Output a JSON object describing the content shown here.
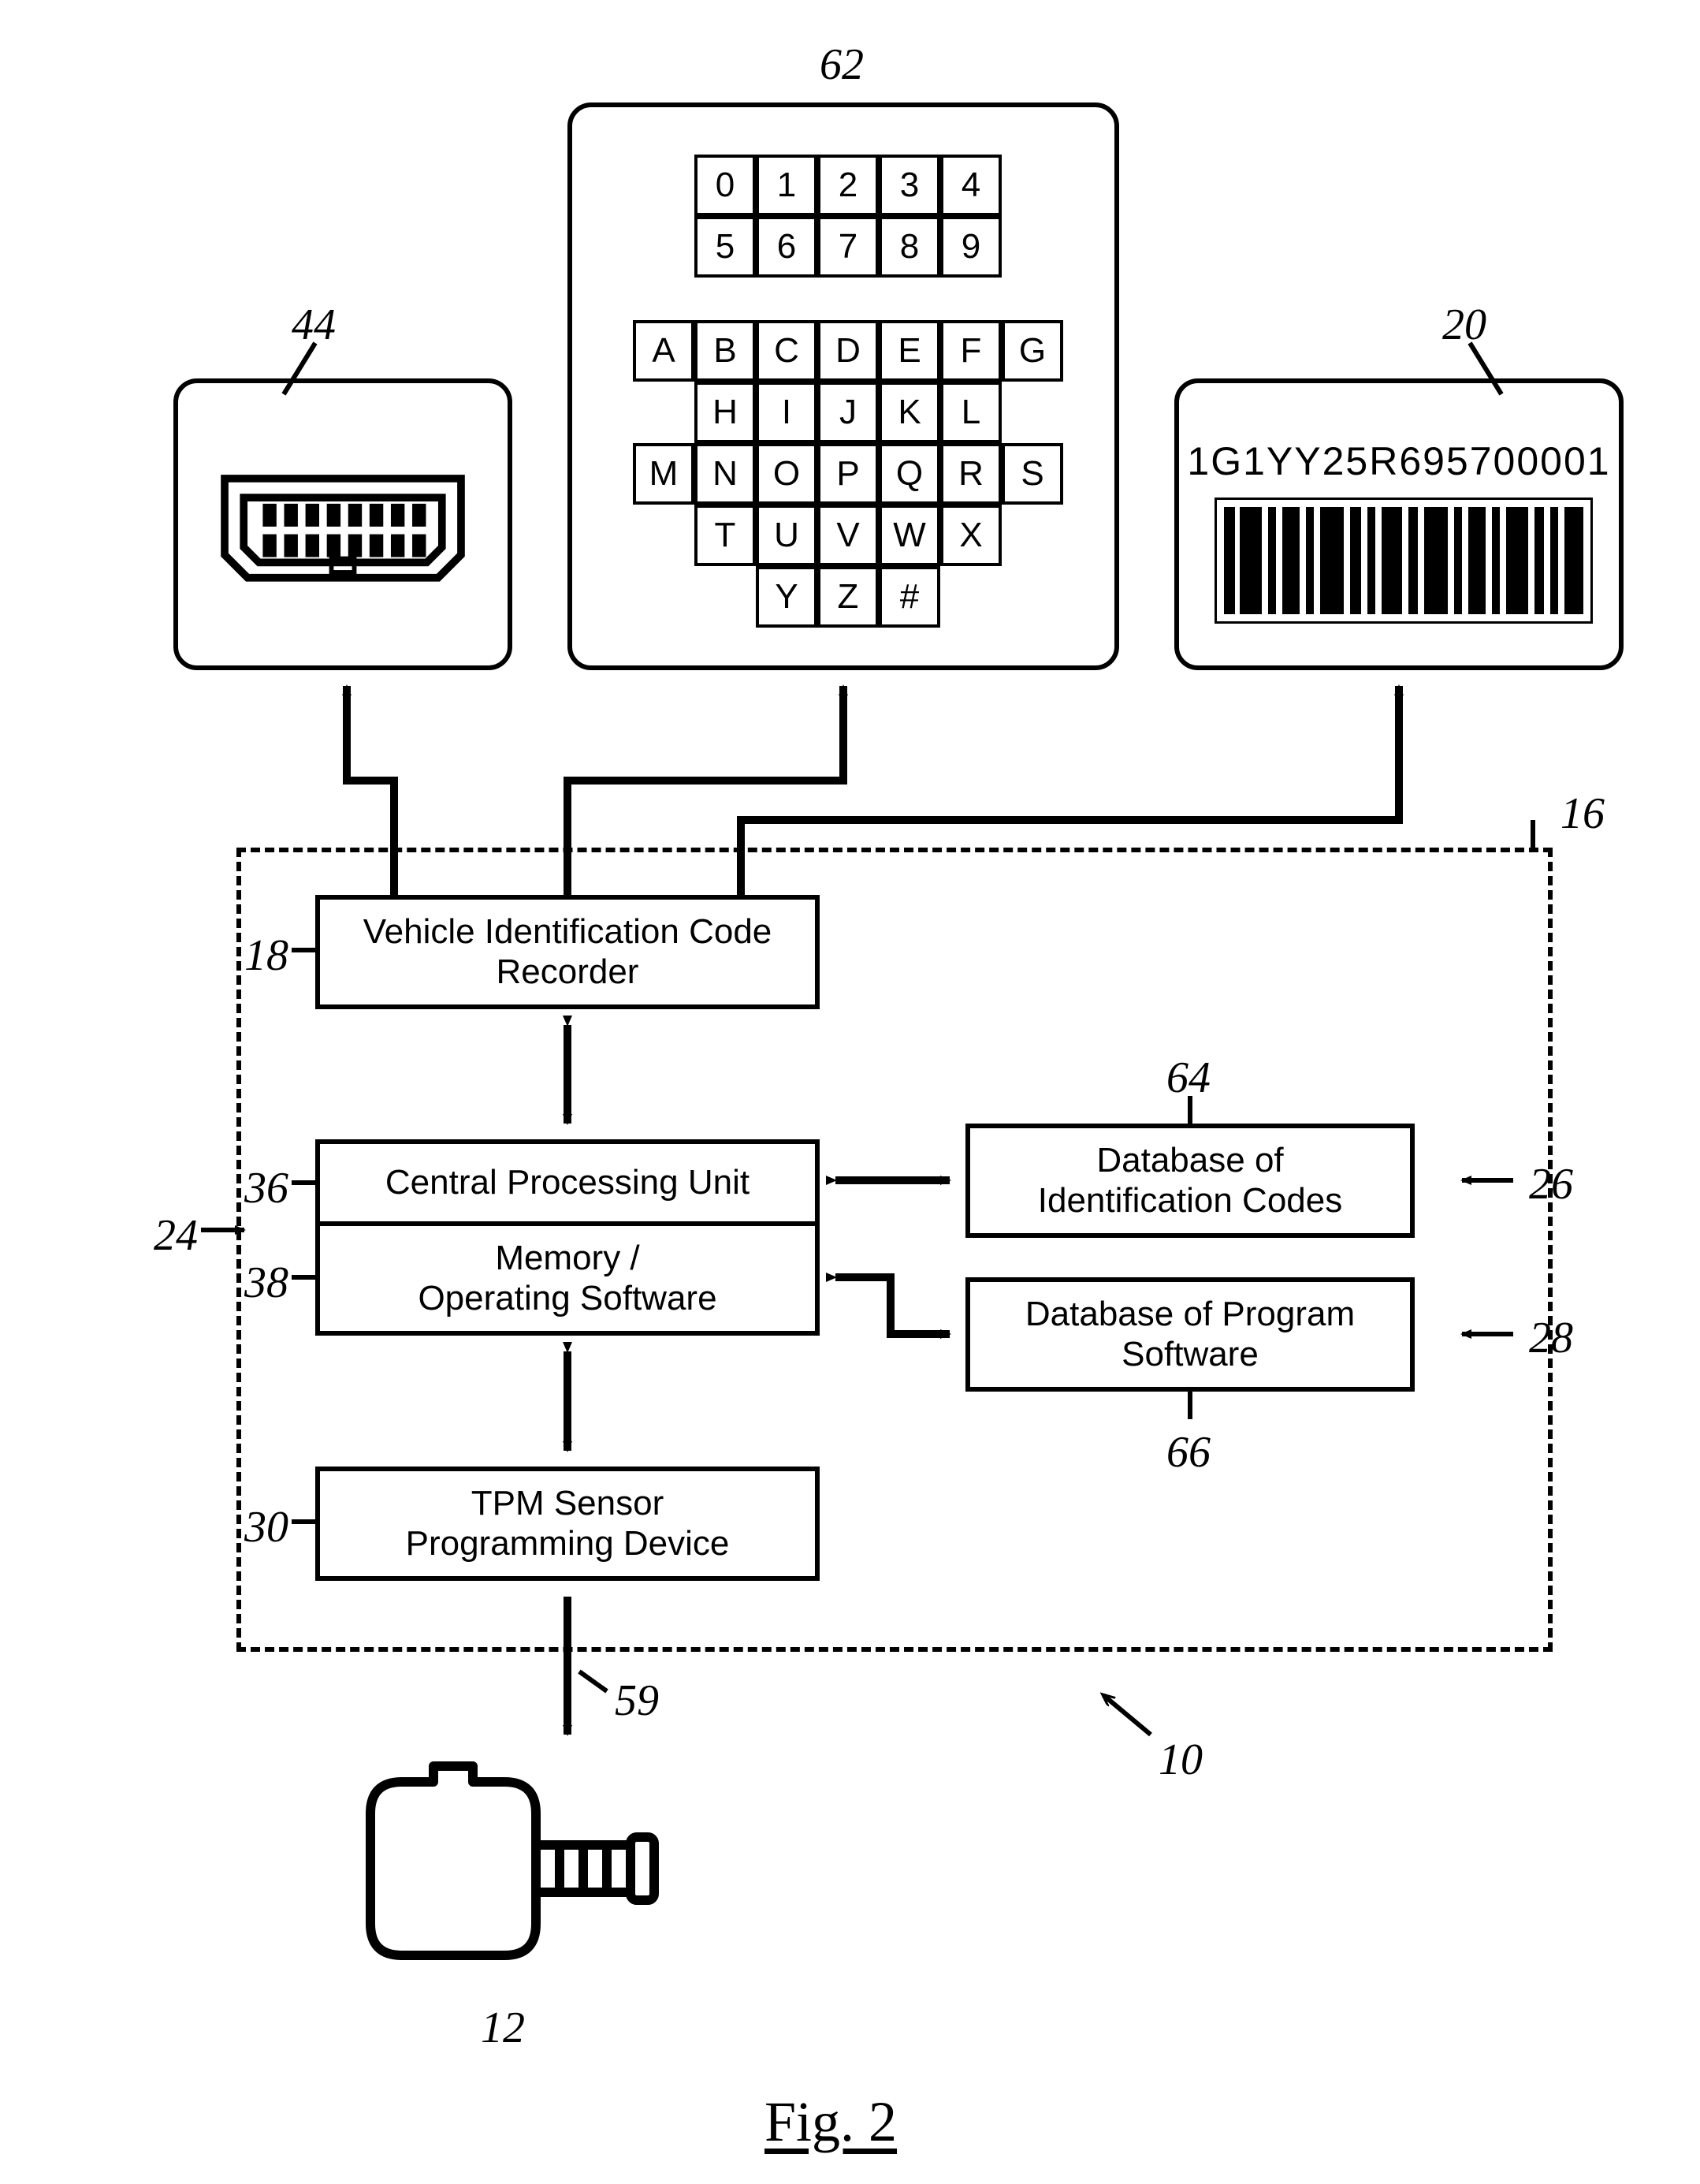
{
  "figure_label": "Fig. 2",
  "colors": {
    "stroke": "#000000",
    "background": "#ffffff",
    "line_width": 6
  },
  "refs": {
    "r44": "44",
    "r62": "62",
    "r20": "20",
    "r18": "18",
    "r16": "16",
    "r36": "36",
    "r24": "24",
    "r38": "38",
    "r64": "64",
    "r26": "26",
    "r66": "66",
    "r28": "28",
    "r30": "30",
    "r59": "59",
    "r10": "10",
    "r12": "12"
  },
  "blocks": {
    "vic_recorder": "Vehicle Identification Code\nRecorder",
    "cpu": "Central Processing Unit",
    "memory": "Memory /\nOperating Software",
    "db_id": "Database of\nIdentification Codes",
    "db_prog": "Database of Program\nSoftware",
    "tpm": "TPM Sensor\nProgramming Device"
  },
  "vin": "1G1YY25R695700001",
  "keypad": {
    "digits": [
      [
        "0",
        "1",
        "2",
        "3",
        "4"
      ],
      [
        "5",
        "6",
        "7",
        "8",
        "9"
      ]
    ],
    "letters": [
      [
        "A",
        "B",
        "C",
        "D",
        "E",
        "F",
        "G"
      ],
      [
        "",
        "H",
        "I",
        "J",
        "K",
        "L",
        ""
      ],
      [
        "M",
        "N",
        "O",
        "P",
        "Q",
        "R",
        "S"
      ],
      [
        "",
        "T",
        "U",
        "V",
        "W",
        "X",
        ""
      ],
      [
        "",
        "",
        "Y",
        "Z",
        "#",
        "",
        ""
      ]
    ]
  }
}
